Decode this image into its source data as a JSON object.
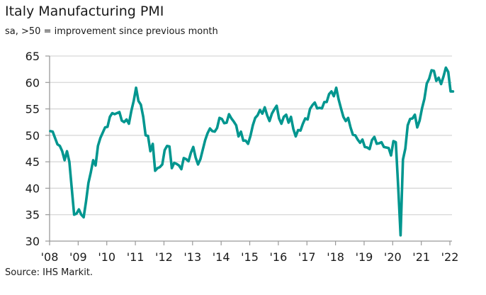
{
  "chart_data": {
    "type": "line",
    "title": "Italy Manufacturing PMI",
    "subtitle": "sa, >50 = improvement since previous month",
    "source": "Source: IHS Markit.",
    "xlabel": "",
    "ylabel": "",
    "ylim": [
      30,
      65
    ],
    "yticks": [
      "30",
      "35",
      "40",
      "45",
      "50",
      "55",
      "60",
      "65"
    ],
    "xticks": [
      "'08",
      "'09",
      "'10",
      "'11",
      "'12",
      "'13",
      "'14",
      "'15",
      "'16",
      "'17",
      "'18",
      "'19",
      "'20",
      "'21",
      "'22"
    ],
    "x_start": "2008-01",
    "x_end": "2022-02",
    "frequency": "monthly",
    "grid": true,
    "line_color": "#00968F",
    "series": [
      {
        "values": [
          50.8,
          50.7,
          49.5,
          48.3,
          48.0,
          47.0,
          45.3,
          47.0,
          45.0,
          40.0,
          35.0,
          35.2,
          36.0,
          35.0,
          34.5,
          37.5,
          41.0,
          43.0,
          45.3,
          44.3,
          48.0,
          49.5,
          50.5,
          51.5,
          51.6,
          53.5,
          54.2,
          54.0,
          54.2,
          54.4,
          52.8,
          52.5,
          53.0,
          52.2,
          54.6,
          56.5,
          59.0,
          56.5,
          55.8,
          53.5,
          50.0,
          49.9,
          47.0,
          48.4,
          43.3,
          43.8,
          44.0,
          44.5,
          47.2,
          48.0,
          47.9,
          43.8,
          44.8,
          44.6,
          44.3,
          43.6,
          45.7,
          45.5,
          45.1,
          46.7,
          47.8,
          45.8,
          44.5,
          45.5,
          47.3,
          49.1,
          50.4,
          51.3,
          50.8,
          50.7,
          51.4,
          53.3,
          53.1,
          52.3,
          52.4,
          54.0,
          53.2,
          52.6,
          51.9,
          49.8,
          50.7,
          49.0,
          49.0,
          48.4,
          49.9,
          51.9,
          53.3,
          53.8,
          54.8,
          54.1,
          55.3,
          53.8,
          52.7,
          54.1,
          54.9,
          55.6,
          53.2,
          52.2,
          53.5,
          53.9,
          52.4,
          53.5,
          51.2,
          49.8,
          51.0,
          50.9,
          52.2,
          53.2,
          53.0,
          55.0,
          55.7,
          56.2,
          55.1,
          55.2,
          55.1,
          56.3,
          56.3,
          57.8,
          58.3,
          57.4,
          59.0,
          56.8,
          55.1,
          53.5,
          52.7,
          53.3,
          51.5,
          50.1,
          50.0,
          49.2,
          48.6,
          49.2,
          47.8,
          47.7,
          47.4,
          49.1,
          49.7,
          48.4,
          48.5,
          48.7,
          47.8,
          47.7,
          47.6,
          46.2,
          48.9,
          48.7,
          40.3,
          31.1,
          45.4,
          47.5,
          51.9,
          53.1,
          53.2,
          53.9,
          51.5,
          52.8,
          55.1,
          56.9,
          59.8,
          60.7,
          62.3,
          62.2,
          60.3,
          60.9,
          59.7,
          61.1,
          62.8,
          62.0,
          58.3,
          58.3
        ]
      }
    ]
  }
}
